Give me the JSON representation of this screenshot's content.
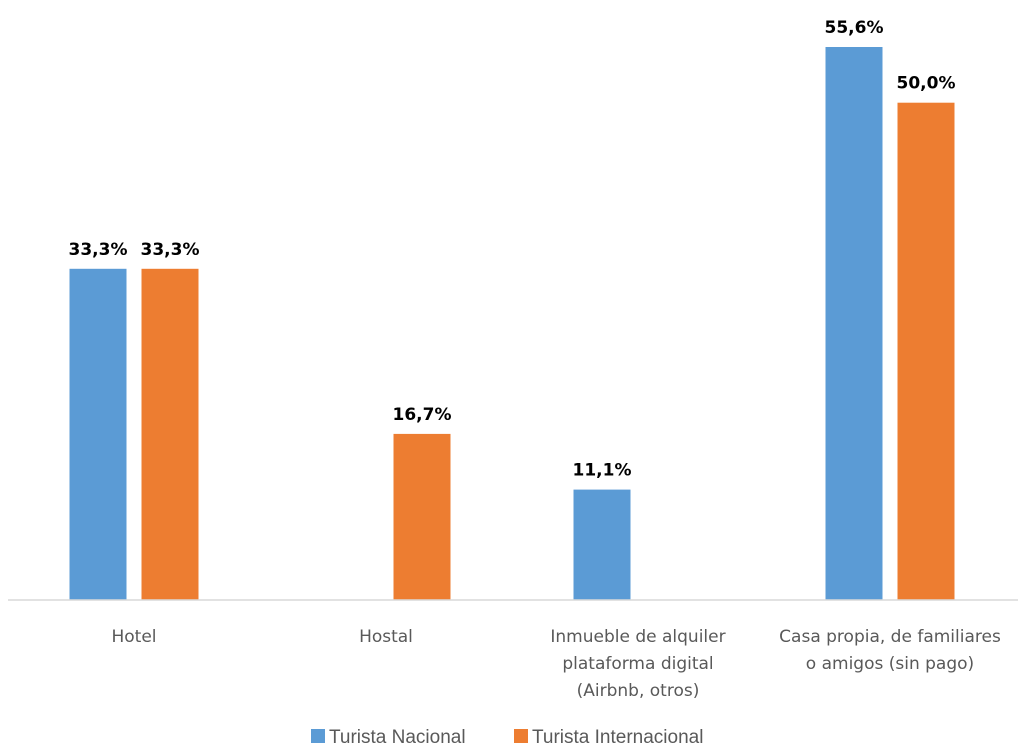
{
  "chart_data": {
    "type": "bar",
    "categories": [
      [
        "Hotel"
      ],
      [
        "Hostal"
      ],
      [
        "Inmueble de alquiler",
        "plataforma digital",
        "(Airbnb, otros)"
      ],
      [
        "Casa propia, de familiares",
        "o amigos (sin pago)"
      ]
    ],
    "series": [
      {
        "name": "Turista Nacional",
        "color": "#5B9BD5",
        "values": [
          33.3,
          0,
          11.1,
          55.6
        ],
        "labels": [
          "33,3%",
          "",
          "11,1%",
          "55,6%"
        ]
      },
      {
        "name": "Turista Internacional",
        "color": "#ED7D31",
        "values": [
          33.3,
          16.7,
          0,
          50.0
        ],
        "labels": [
          "33,3%",
          "16,7%",
          "",
          "50,0%"
        ]
      }
    ],
    "ylim": [
      0,
      55.6
    ],
    "grid": false,
    "legend_position": "bottom"
  }
}
